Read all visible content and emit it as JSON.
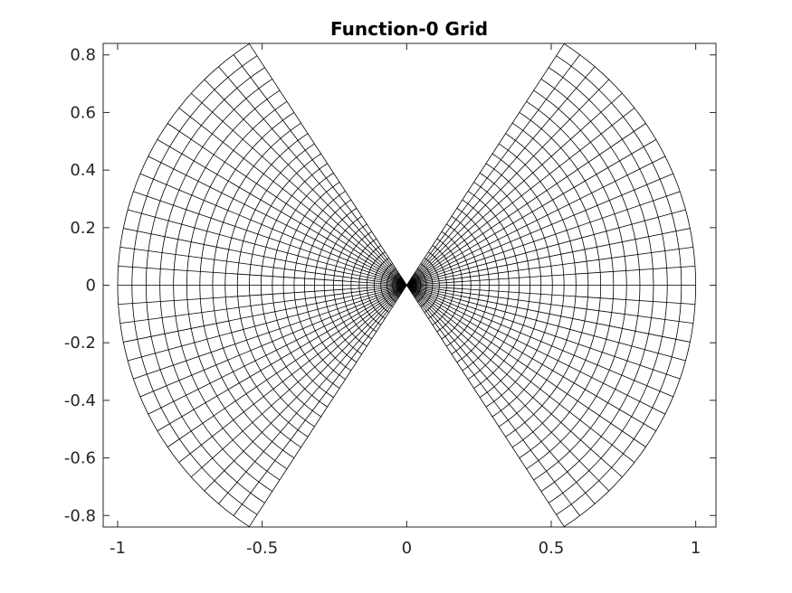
{
  "chart_data": {
    "type": "line",
    "title": "Function-0 Grid",
    "xlabel": "",
    "ylabel": "",
    "xlim": [
      -1.05,
      1.07
    ],
    "ylim": [
      -0.84,
      0.84
    ],
    "xticks": [
      -1,
      -0.5,
      0,
      0.5,
      1
    ],
    "xtick_labels": [
      "-1",
      "-0.5",
      "0",
      "0.5",
      "1"
    ],
    "yticks": [
      -0.8,
      -0.6,
      -0.4,
      -0.2,
      0,
      0.2,
      0.4,
      0.6,
      0.8
    ],
    "ytick_labels": [
      "-0.8",
      "-0.6",
      "-0.4",
      "-0.2",
      "0",
      "0.2",
      "0.4",
      "0.6",
      "0.8"
    ],
    "grid": false,
    "line_color": "#000000",
    "wedges": [
      {
        "center": [
          0,
          0
        ],
        "r_min": 0,
        "r_max": 1,
        "theta_min_deg": -57,
        "theta_max_deg": 57
      },
      {
        "center": [
          0,
          0
        ],
        "r_min": 0,
        "r_max": 1,
        "theta_min_deg": 123,
        "theta_max_deg": 237
      }
    ],
    "radial_lines_per_wedge": 31,
    "arc_circles_per_wedge": 30,
    "r_spacing_exponent": 1.5
  }
}
